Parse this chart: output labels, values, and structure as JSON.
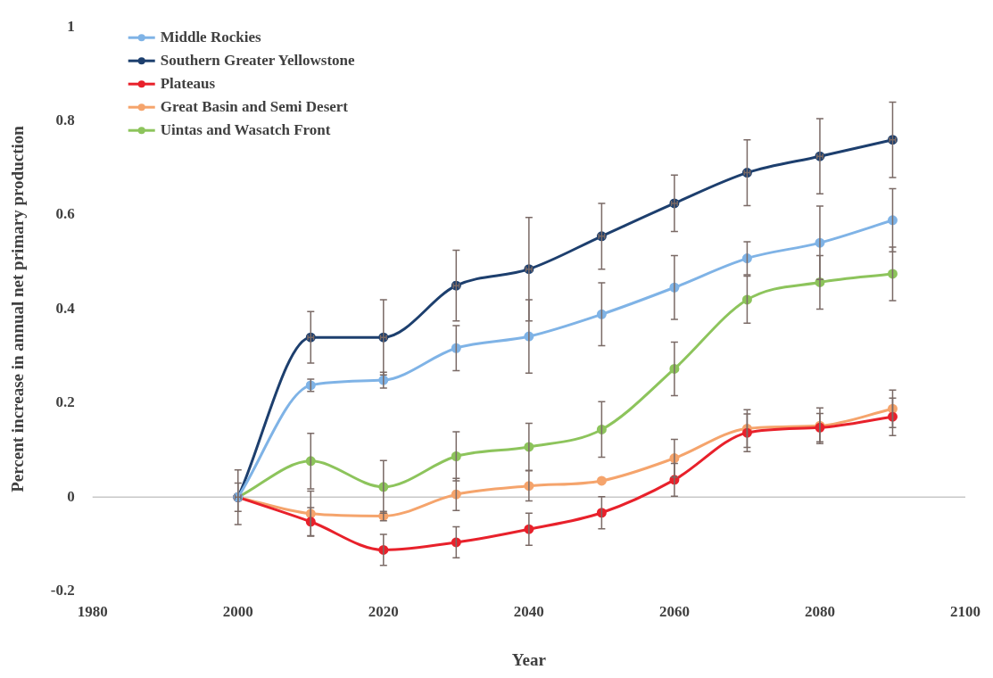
{
  "chart_data": {
    "type": "line",
    "xlabel": "Year",
    "ylabel": "Percent increase in annual net primary production",
    "x": [
      2000,
      2010,
      2020,
      2030,
      2040,
      2050,
      2060,
      2070,
      2080,
      2090
    ],
    "series": [
      {
        "name": "Middle Rockies",
        "color": "#7fb3e6",
        "values": [
          0,
          0.238,
          0.249,
          0.317,
          0.342,
          0.389,
          0.446,
          0.508,
          0.541,
          0.589
        ],
        "errors": [
          null,
          0.013,
          0.017,
          0.048,
          0.078,
          0.067,
          0.068,
          0.035,
          0.078,
          0.067
        ]
      },
      {
        "name": "Southern Greater Yellowstone",
        "color": "#1d3f6e",
        "values": [
          0,
          0.34,
          0.34,
          0.45,
          0.485,
          0.555,
          0.625,
          0.69,
          0.725,
          0.76
        ],
        "errors": [
          null,
          0.055,
          0.08,
          0.075,
          0.11,
          0.07,
          0.06,
          0.07,
          0.08,
          0.08
        ],
        "xerrors": [
          0.4,
          0.4,
          0.4,
          0.4,
          0.4,
          0.4,
          0.4,
          0.4,
          0.4,
          0.4
        ]
      },
      {
        "name": "Plateaus",
        "color": "#e8212b",
        "values": [
          0,
          -0.052,
          -0.112,
          -0.096,
          -0.068,
          -0.033,
          0.037,
          0.137,
          0.148,
          0.171
        ],
        "errors": [
          0.03,
          0.03,
          0.033,
          0.033,
          0.034,
          0.034,
          0.035,
          0.04,
          0.03,
          0.04
        ]
      },
      {
        "name": "Great Basin and Semi Desert",
        "color": "#f5a46c",
        "values": [
          0,
          -0.035,
          -0.04,
          0.006,
          0.024,
          0.035,
          0.083,
          0.146,
          0.152,
          0.188
        ],
        "errors": [
          null,
          0.048,
          0.01,
          0.034,
          0.032,
          null,
          0.04,
          0.04,
          0.038,
          0.04
        ]
      },
      {
        "name": "Uintas and Wasatch Front",
        "color": "#8dc45c",
        "values": [
          0,
          0.077,
          0.022,
          0.087,
          0.107,
          0.144,
          0.273,
          0.42,
          0.457,
          0.475
        ],
        "errors": [
          0.058,
          0.059,
          0.056,
          0.052,
          0.05,
          0.059,
          0.057,
          0.05,
          0.057,
          0.057
        ]
      }
    ],
    "xlim": [
      1980,
      2100
    ],
    "xticks": [
      1980,
      2000,
      2020,
      2040,
      2060,
      2080,
      2100
    ],
    "ylim": [
      -0.2,
      1
    ],
    "yticks": [
      -0.2,
      0,
      0.2,
      0.4,
      0.6,
      0.8,
      1
    ],
    "ref_lines": [
      {
        "axis": "y",
        "value": 0,
        "color": "#c8c8c8"
      }
    ],
    "grid": false,
    "legend": "top left",
    "marker": "circle",
    "line_style": "solid"
  }
}
